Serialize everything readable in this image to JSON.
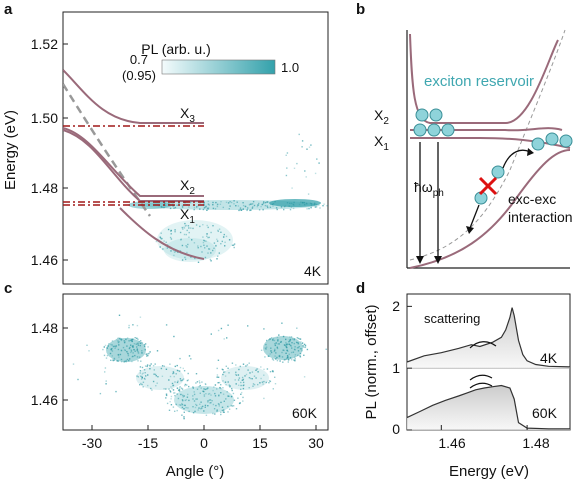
{
  "panels": {
    "a": {
      "label": "a",
      "y_axis_label": "Energy (eV)",
      "y_ticks": [
        "1.52",
        "1.50",
        "1.48",
        "1.46"
      ],
      "colorbar": {
        "title": "PL (arb. u.)",
        "min_label": "0.7",
        "min_sub_label": "(0.95)",
        "max_label": "1.0"
      },
      "state_labels": {
        "x3": "X",
        "x3_sub": "3",
        "x2": "X",
        "x2_sub": "2",
        "x1": "X",
        "x1_sub": "1"
      },
      "temperature": "4K",
      "energy_levels_eV": {
        "X3": 1.497,
        "X2": 1.476,
        "X1": 1.475
      }
    },
    "b": {
      "label": "b",
      "title": "exciton reservoir",
      "levels": {
        "x2": "X",
        "x2_sub": "2",
        "x1": "X",
        "x1_sub": "1"
      },
      "phonon": "ħω",
      "phonon_sub": "ph",
      "interaction_line1": "exc-exc",
      "interaction_line2": "interaction"
    },
    "c": {
      "label": "c",
      "x_axis_label": "Angle (°)",
      "x_ticks": [
        "-30",
        "-15",
        "0",
        "15",
        "30"
      ],
      "y_ticks": [
        "1.48",
        "1.46"
      ],
      "temperature": "60K"
    },
    "d": {
      "label": "d",
      "y_axis_label": "PL (norm., offset)",
      "x_axis_label": "Energy (eV)",
      "x_ticks": [
        "1.46",
        "1.48"
      ],
      "y_ticks": [
        "2",
        "1",
        "0"
      ],
      "annotation": "scattering",
      "temp_top": "4K",
      "temp_bottom": "60K"
    }
  },
  "chart_data": [
    {
      "type": "line",
      "panel": "d",
      "xlim": [
        1.452,
        1.49
      ],
      "ylim": [
        0,
        2.2
      ],
      "xlabel": "Energy (eV)",
      "ylabel": "PL (norm., offset)",
      "series": [
        {
          "label": "4K",
          "offset": 1,
          "x": [
            1.452,
            1.456,
            1.46,
            1.464,
            1.467,
            1.469,
            1.472,
            1.474,
            1.475,
            1.476,
            1.4765,
            1.477,
            1.478,
            1.479,
            1.48,
            1.482,
            1.485,
            1.49
          ],
          "y": [
            1.1,
            1.2,
            1.25,
            1.32,
            1.38,
            1.35,
            1.42,
            1.5,
            1.62,
            1.82,
            1.98,
            1.85,
            1.45,
            1.22,
            1.12,
            1.06,
            1.03,
            1.02
          ]
        },
        {
          "label": "60K",
          "offset": 0,
          "x": [
            1.452,
            1.455,
            1.458,
            1.461,
            1.464,
            1.466,
            1.468,
            1.47,
            1.472,
            1.474,
            1.476,
            1.477,
            1.478,
            1.48,
            1.485,
            1.49
          ],
          "y": [
            0.2,
            0.3,
            0.4,
            0.48,
            0.55,
            0.6,
            0.65,
            0.68,
            0.7,
            0.72,
            0.68,
            0.5,
            0.12,
            0.03,
            0.02,
            0.02
          ]
        }
      ]
    }
  ]
}
